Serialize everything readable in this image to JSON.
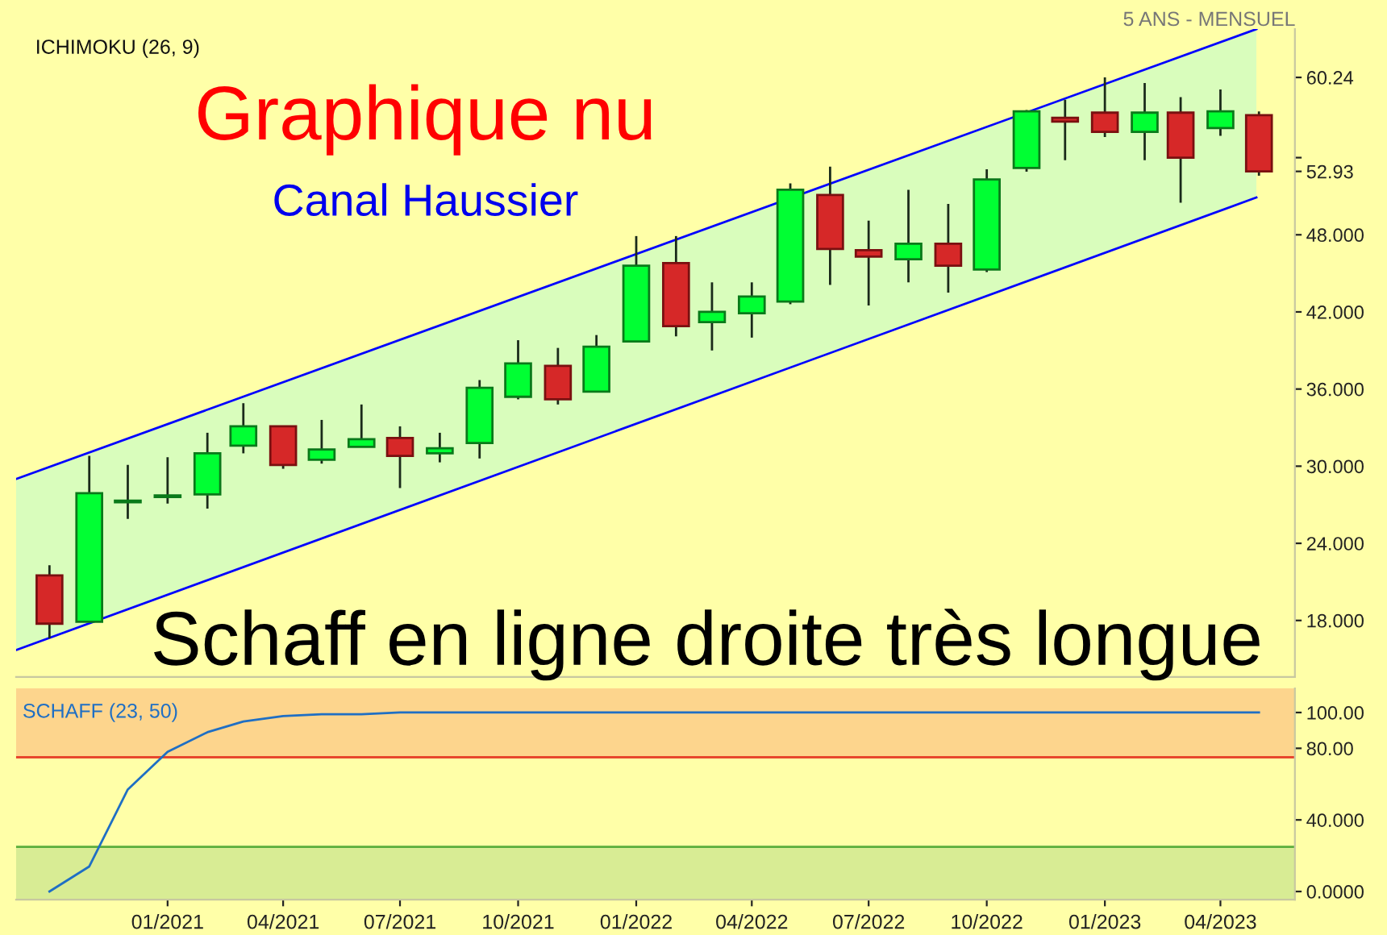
{
  "chart_data": [
    {
      "type": "candlestick",
      "title": "5 ANS - MENSUEL",
      "annotations": [
        "ICHIMOKU (26, 9)",
        "Graphique nu",
        "Canal Haussier",
        "Schaff en ligne droite très longue"
      ],
      "x": [
        "2020-10",
        "2020-11",
        "2020-12",
        "2021-01",
        "2021-02",
        "2021-03",
        "2021-04",
        "2021-05",
        "2021-06",
        "2021-07",
        "2021-08",
        "2021-09",
        "2021-10",
        "2021-11",
        "2021-12",
        "2022-01",
        "2022-02",
        "2022-03",
        "2022-04",
        "2022-05",
        "2022-06",
        "2022-07",
        "2022-08",
        "2022-09",
        "2022-10",
        "2022-11",
        "2022-12",
        "2023-01",
        "2023-02",
        "2023-03",
        "2023-04",
        "2023-05"
      ],
      "ohlc": [
        [
          21.5,
          22.3,
          16.6,
          17.75
        ],
        [
          17.9,
          30.8,
          17.9,
          27.9
        ],
        [
          27.2,
          30.1,
          25.9,
          27.3
        ],
        [
          27.6,
          30.7,
          27.1,
          27.7
        ],
        [
          27.8,
          32.6,
          26.7,
          31.0
        ],
        [
          31.6,
          34.9,
          31.0,
          33.1
        ],
        [
          33.1,
          33.1,
          29.8,
          30.1
        ],
        [
          30.5,
          33.6,
          30.2,
          31.3
        ],
        [
          31.5,
          34.8,
          31.5,
          32.1
        ],
        [
          32.2,
          33.1,
          28.3,
          30.8
        ],
        [
          31.0,
          32.6,
          30.3,
          31.4
        ],
        [
          31.8,
          36.7,
          30.6,
          36.1
        ],
        [
          35.4,
          39.8,
          35.2,
          38.0
        ],
        [
          37.8,
          39.2,
          34.8,
          35.2
        ],
        [
          35.8,
          40.2,
          35.8,
          39.3
        ],
        [
          39.7,
          47.9,
          39.7,
          45.6
        ],
        [
          45.8,
          47.9,
          40.1,
          40.9
        ],
        [
          41.2,
          44.3,
          39.0,
          42.0
        ],
        [
          41.9,
          44.3,
          40.0,
          43.2
        ],
        [
          42.8,
          52.0,
          42.6,
          51.5
        ],
        [
          51.1,
          53.3,
          44.1,
          46.9
        ],
        [
          46.8,
          49.1,
          42.5,
          46.3
        ],
        [
          46.1,
          51.5,
          44.3,
          47.3
        ],
        [
          47.3,
          50.4,
          43.5,
          45.6
        ],
        [
          45.3,
          53.1,
          45.1,
          52.3
        ],
        [
          53.2,
          57.7,
          52.9,
          57.6
        ],
        [
          57.1,
          58.5,
          53.8,
          56.8
        ],
        [
          57.5,
          60.24,
          55.6,
          56.0
        ],
        [
          56.0,
          59.8,
          53.8,
          57.5
        ],
        [
          57.5,
          58.7,
          50.5,
          54.0
        ],
        [
          56.3,
          59.3,
          55.7,
          57.6
        ],
        [
          57.3,
          57.6,
          52.6,
          52.93
        ]
      ],
      "series": [
        {
          "type": "line",
          "color": "#0000ff",
          "x": [
            "2020-09-05",
            "2023-04-29"
          ],
          "values": [
            15.7,
            50.9
          ],
          "lower": [
            15.7,
            50.9
          ],
          "upper": [
            29.0,
            64.0
          ]
        },
        {
          "type": "line",
          "color": "#0000ff",
          "x": [
            "2020-09-05",
            "2023-04-29"
          ],
          "values": [
            29.0,
            64.0
          ]
        }
      ],
      "xlim": [
        "2020-09-05",
        "2023-05-29"
      ],
      "ylim": [
        13.6,
        64
      ],
      "yticks": [
        {
          "value": 18,
          "label": "18.000"
        },
        {
          "value": 24,
          "label": "24.000"
        },
        {
          "value": 30,
          "label": "30.000"
        },
        {
          "value": 36,
          "label": "36.000"
        },
        {
          "value": 42,
          "label": "42.000"
        },
        {
          "value": 48,
          "label": "48.000"
        },
        {
          "value": 54,
          "label": null
        },
        52.93,
        60.24
      ],
      "tick_labels": "y",
      "grid": false,
      "legend": false
    },
    {
      "type": "line",
      "title": "SCHAFF (23, 50)",
      "x": [
        "2020-10",
        "2020-11",
        "2020-12",
        "2021-01",
        "2021-02",
        "2021-03",
        "2021-04",
        "2021-05",
        "2021-06",
        "2021-07",
        "2021-08",
        "2021-09",
        "2021-10",
        "2021-11",
        "2021-12",
        "2022-01",
        "2022-02",
        "2022-03",
        "2022-04",
        "2022-05",
        "2022-06",
        "2022-07",
        "2022-08",
        "2022-09",
        "2022-10",
        "2022-11",
        "2022-12",
        "2023-01",
        "2023-02",
        "2023-03",
        "2023-04",
        "2023-05"
      ],
      "series": [
        {
          "color": "#1f6fc4",
          "values": [
            0,
            14,
            57,
            78,
            89,
            95,
            98,
            99,
            99,
            100,
            100,
            100,
            100,
            100,
            100,
            100,
            100,
            100,
            100,
            100,
            100,
            100,
            100,
            100,
            100,
            100,
            100,
            100,
            100,
            100,
            100,
            100
          ]
        }
      ],
      "bands": [
        {
          "axis": "y",
          "from": 75,
          "to": 113.5,
          "color": "#fdd58d"
        },
        {
          "axis": "y",
          "from": -4.5,
          "to": 25,
          "color": "#d8ec94"
        }
      ],
      "ref_lines": [
        {
          "axis": "y",
          "value": 75,
          "color": "#e8462e"
        },
        {
          "axis": "y",
          "value": 25,
          "color": "#5aae3c"
        }
      ],
      "xlim": [
        "2020-09-05",
        "2023-05-29"
      ],
      "xticks": [
        {
          "value": "2021-01",
          "label": "01/2021"
        },
        {
          "value": "2021-04",
          "label": "04/2021"
        },
        {
          "value": "2021-07",
          "label": "07/2021"
        },
        {
          "value": "2021-10",
          "label": "10/2021"
        },
        {
          "value": "2022-01",
          "label": "01/2022"
        },
        {
          "value": "2022-04",
          "label": "04/2022"
        },
        {
          "value": "2022-07",
          "label": "07/2022"
        },
        {
          "value": "2022-10",
          "label": "10/2022"
        },
        {
          "value": "2023-01",
          "label": "01/2023"
        },
        {
          "value": "2023-04",
          "label": "04/2023"
        }
      ],
      "ylim": [
        -4.5,
        113.5
      ],
      "yticks": [
        {
          "value": 0,
          "label": "0.0000"
        },
        {
          "value": 40,
          "label": "40.000"
        },
        {
          "value": 80,
          "label": "80.00"
        },
        {
          "value": 100,
          "label": "100.00"
        }
      ],
      "grid": false,
      "legend": false,
      "marker": "none",
      "line_style": "solid"
    }
  ]
}
